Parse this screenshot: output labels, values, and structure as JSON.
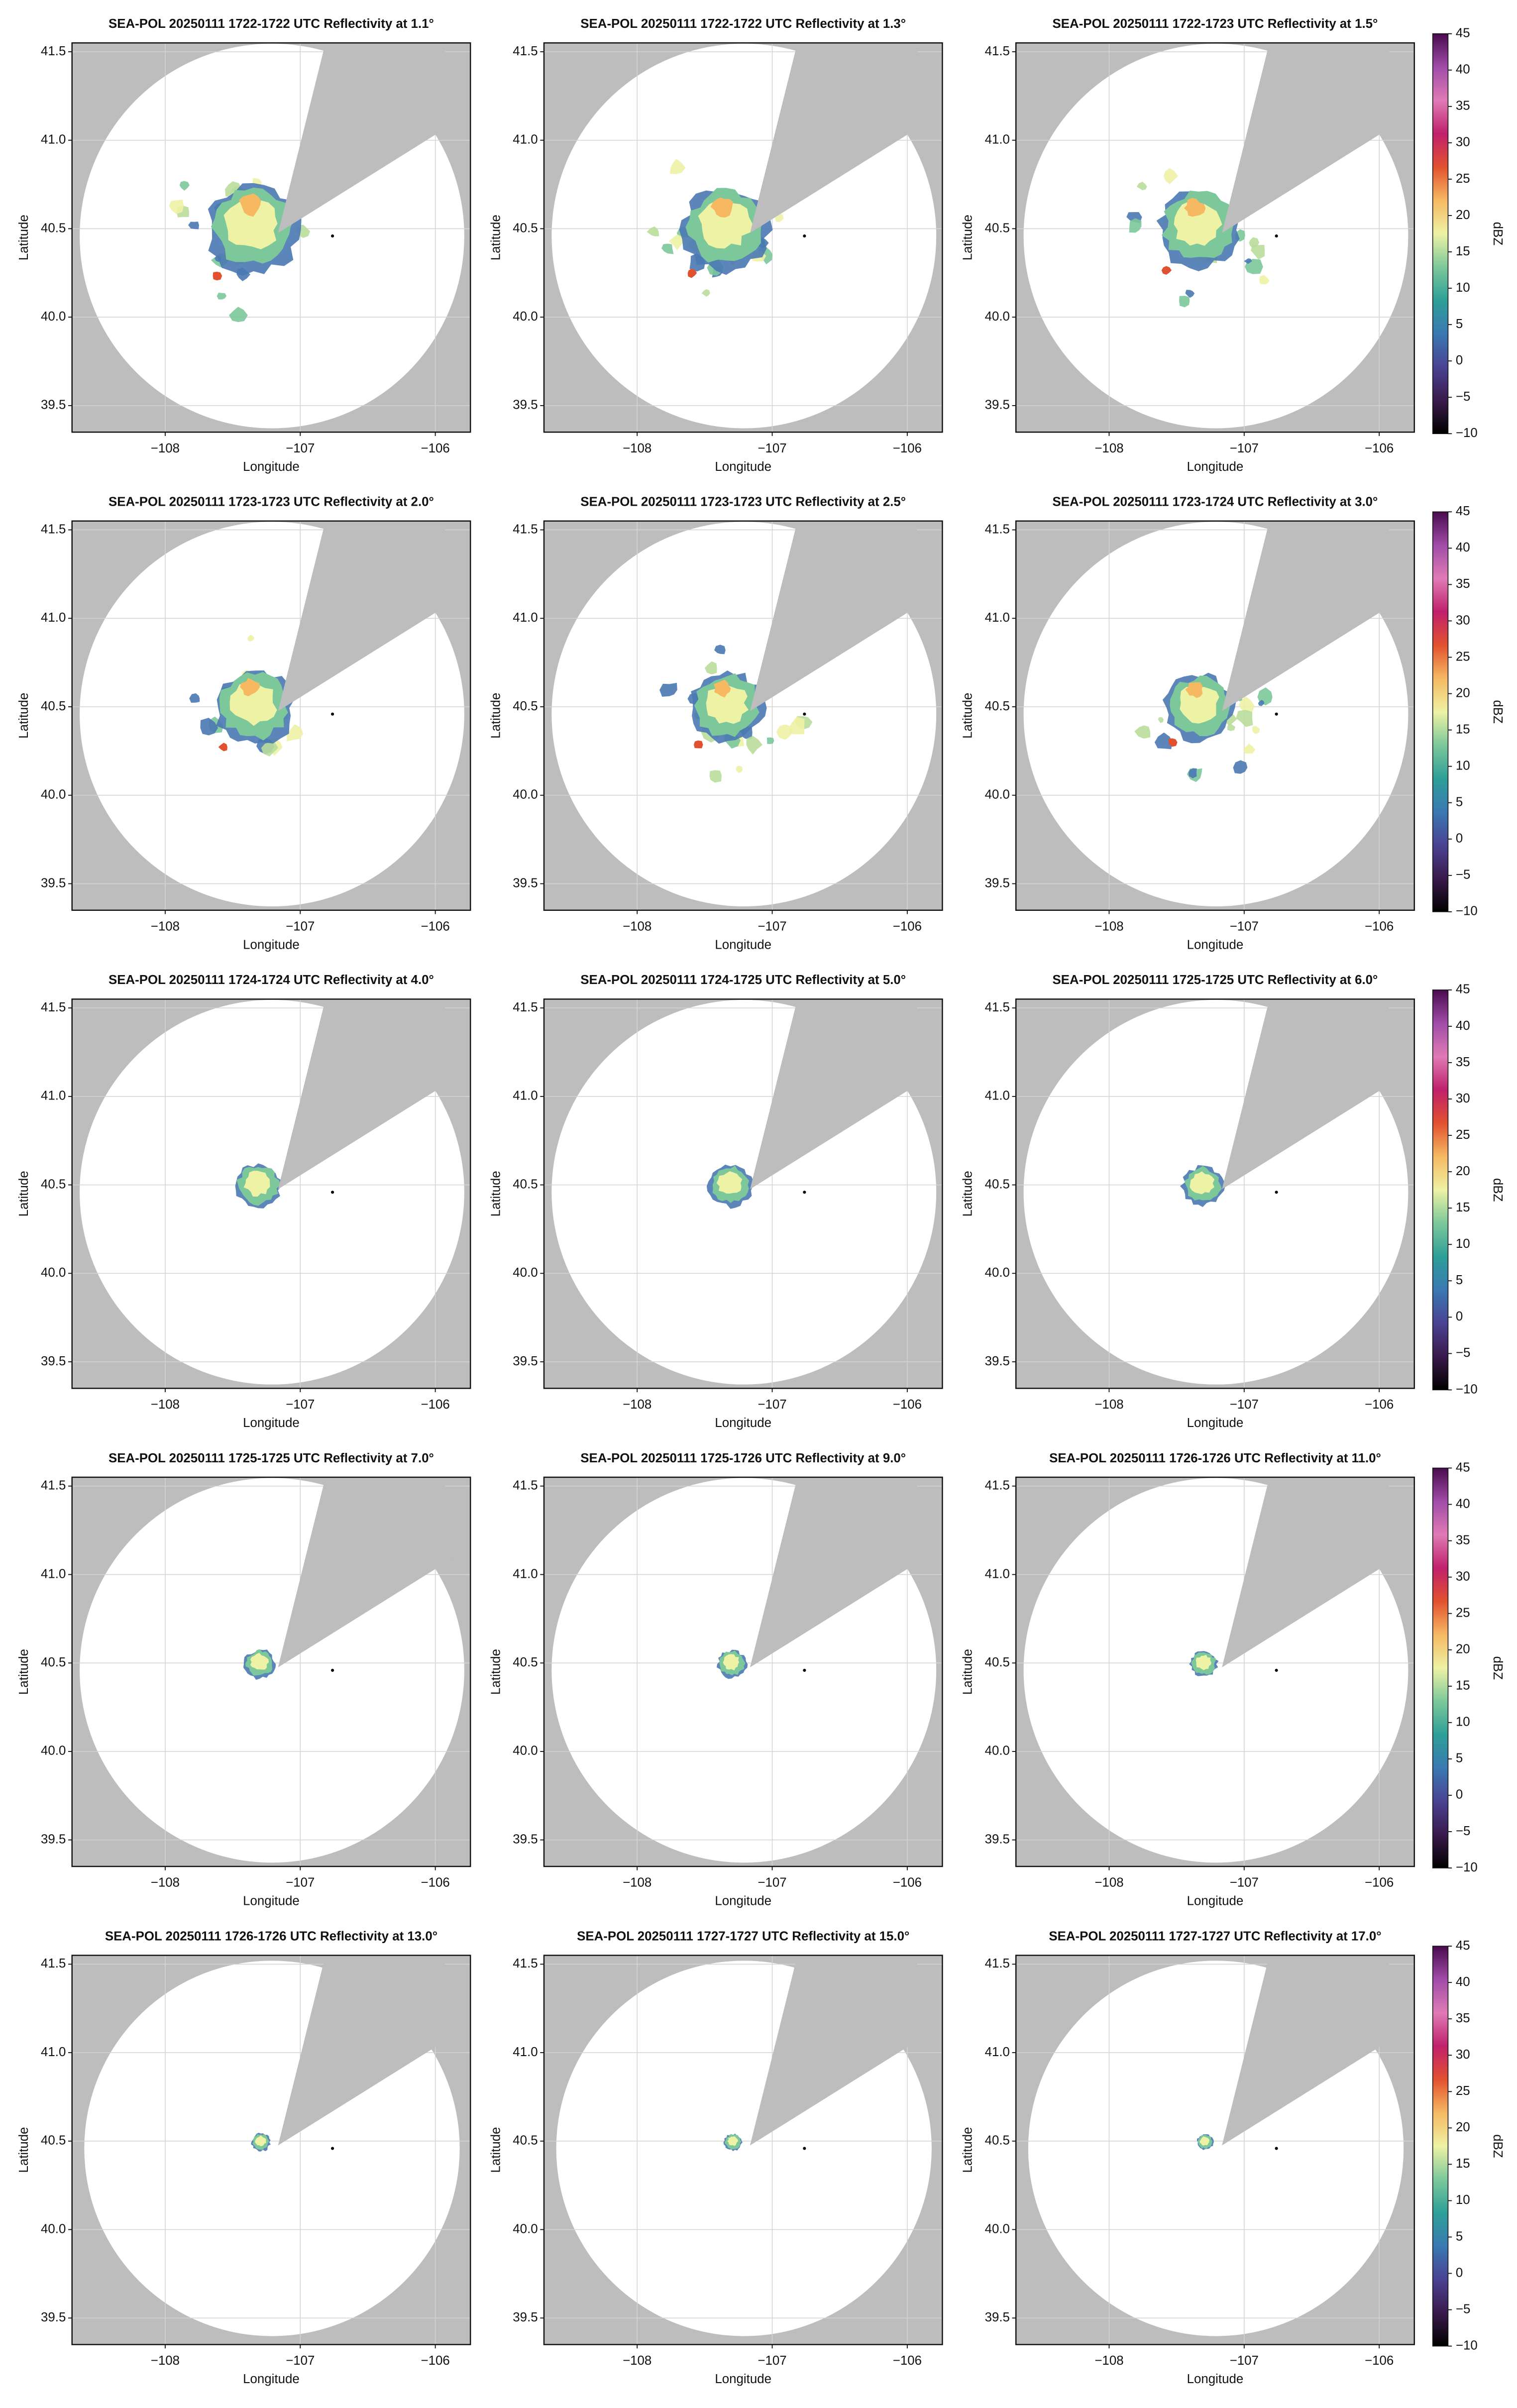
{
  "chart_data": [
    {
      "type": "radar",
      "title": "SEA-POL 20250111 1722-1722 UTC Reflectivity at 1.1°",
      "xlabel": "Longitude",
      "ylabel": "Latitude",
      "xlim": [
        -108.69,
        -105.74
      ],
      "ylim": [
        39.35,
        41.55
      ],
      "xticks": [
        {
          "value": -108,
          "label": "−108"
        },
        {
          "value": -107,
          "label": "−107"
        },
        {
          "value": -106,
          "label": "−106"
        }
      ],
      "yticks": [
        39.5,
        {
          "value": 40,
          "label": "40.0"
        },
        40.5,
        {
          "value": 41,
          "label": "41.0"
        },
        41.5
      ],
      "grid": true
    },
    {
      "type": "radar",
      "title": "SEA-POL 20250111 1722-1722 UTC Reflectivity at 1.3°",
      "xlabel": "Longitude",
      "ylabel": "Latitude",
      "xlim": [
        -108.69,
        -105.74
      ],
      "ylim": [
        39.35,
        41.55
      ],
      "xticks": [
        {
          "value": -108,
          "label": "−108"
        },
        {
          "value": -107,
          "label": "−107"
        },
        {
          "value": -106,
          "label": "−106"
        }
      ],
      "yticks": [
        39.5,
        {
          "value": 40,
          "label": "40.0"
        },
        40.5,
        {
          "value": 41,
          "label": "41.0"
        },
        41.5
      ],
      "grid": true
    },
    {
      "type": "radar",
      "title": "SEA-POL 20250111 1722-1723 UTC Reflectivity at 1.5°",
      "xlabel": "Longitude",
      "ylabel": "Latitude",
      "xlim": [
        -108.69,
        -105.74
      ],
      "ylim": [
        39.35,
        41.55
      ],
      "xticks": [
        {
          "value": -108,
          "label": "−108"
        },
        {
          "value": -107,
          "label": "−107"
        },
        {
          "value": -106,
          "label": "−106"
        }
      ],
      "yticks": [
        39.5,
        {
          "value": 40,
          "label": "40.0"
        },
        40.5,
        {
          "value": 41,
          "label": "41.0"
        },
        41.5
      ],
      "grid": true,
      "colorbar": {
        "label": "dBZ",
        "lim": [
          -10,
          45
        ],
        "ticks": [
          {
            "value": -10,
            "label": "−10"
          },
          {
            "value": -5,
            "label": "−5"
          },
          0,
          5,
          10,
          15,
          20,
          25,
          30,
          35,
          40,
          45
        ],
        "colormap": [
          "#000000",
          "#3a1a4c",
          "#4a4293",
          "#3a79b2",
          "#2e9f98",
          "#7cc89b",
          "#eef2a4",
          "#f6b962",
          "#e2512f",
          "#c0216b",
          "#e07ab6",
          "#a04ca8",
          "#4a0b4e"
        ]
      }
    },
    {
      "type": "radar",
      "title": "SEA-POL 20250111 1723-1723 UTC Reflectivity at 2.0°",
      "xlabel": "Longitude",
      "ylabel": "Latitude",
      "xlim": [
        -108.69,
        -105.74
      ],
      "ylim": [
        39.35,
        41.55
      ],
      "xticks": [
        {
          "value": -108,
          "label": "−108"
        },
        {
          "value": -107,
          "label": "−107"
        },
        {
          "value": -106,
          "label": "−106"
        }
      ],
      "yticks": [
        39.5,
        {
          "value": 40,
          "label": "40.0"
        },
        40.5,
        {
          "value": 41,
          "label": "41.0"
        },
        41.5
      ],
      "grid": true
    },
    {
      "type": "radar",
      "title": "SEA-POL 20250111 1723-1723 UTC Reflectivity at 2.5°",
      "xlabel": "Longitude",
      "ylabel": "Latitude",
      "xlim": [
        -108.69,
        -105.74
      ],
      "ylim": [
        39.35,
        41.55
      ],
      "xticks": [
        {
          "value": -108,
          "label": "−108"
        },
        {
          "value": -107,
          "label": "−107"
        },
        {
          "value": -106,
          "label": "−106"
        }
      ],
      "yticks": [
        39.5,
        {
          "value": 40,
          "label": "40.0"
        },
        40.5,
        {
          "value": 41,
          "label": "41.0"
        },
        41.5
      ],
      "grid": true
    },
    {
      "type": "radar",
      "title": "SEA-POL 20250111 1723-1724 UTC Reflectivity at 3.0°",
      "xlabel": "Longitude",
      "ylabel": "Latitude",
      "xlim": [
        -108.69,
        -105.74
      ],
      "ylim": [
        39.35,
        41.55
      ],
      "xticks": [
        {
          "value": -108,
          "label": "−108"
        },
        {
          "value": -107,
          "label": "−107"
        },
        {
          "value": -106,
          "label": "−106"
        }
      ],
      "yticks": [
        39.5,
        {
          "value": 40,
          "label": "40.0"
        },
        40.5,
        {
          "value": 41,
          "label": "41.0"
        },
        41.5
      ],
      "grid": true,
      "colorbar": {
        "label": "dBZ",
        "lim": [
          -10,
          45
        ],
        "ticks": [
          {
            "value": -10,
            "label": "−10"
          },
          {
            "value": -5,
            "label": "−5"
          },
          0,
          5,
          10,
          15,
          20,
          25,
          30,
          35,
          40,
          45
        ],
        "colormap": [
          "#000000",
          "#3a1a4c",
          "#4a4293",
          "#3a79b2",
          "#2e9f98",
          "#7cc89b",
          "#eef2a4",
          "#f6b962",
          "#e2512f",
          "#c0216b",
          "#e07ab6",
          "#a04ca8",
          "#4a0b4e"
        ]
      }
    },
    {
      "type": "radar",
      "title": "SEA-POL 20250111 1724-1724 UTC Reflectivity at 4.0°",
      "xlabel": "Longitude",
      "ylabel": "Latitude",
      "xlim": [
        -108.69,
        -105.74
      ],
      "ylim": [
        39.35,
        41.55
      ],
      "xticks": [
        {
          "value": -108,
          "label": "−108"
        },
        {
          "value": -107,
          "label": "−107"
        },
        {
          "value": -106,
          "label": "−106"
        }
      ],
      "yticks": [
        39.5,
        {
          "value": 40,
          "label": "40.0"
        },
        40.5,
        {
          "value": 41,
          "label": "41.0"
        },
        41.5
      ],
      "grid": true
    },
    {
      "type": "radar",
      "title": "SEA-POL 20250111 1724-1725 UTC Reflectivity at 5.0°",
      "xlabel": "Longitude",
      "ylabel": "Latitude",
      "xlim": [
        -108.69,
        -105.74
      ],
      "ylim": [
        39.35,
        41.55
      ],
      "xticks": [
        {
          "value": -108,
          "label": "−108"
        },
        {
          "value": -107,
          "label": "−107"
        },
        {
          "value": -106,
          "label": "−106"
        }
      ],
      "yticks": [
        39.5,
        {
          "value": 40,
          "label": "40.0"
        },
        40.5,
        {
          "value": 41,
          "label": "41.0"
        },
        41.5
      ],
      "grid": true
    },
    {
      "type": "radar",
      "title": "SEA-POL 20250111 1725-1725 UTC Reflectivity at 6.0°",
      "xlabel": "Longitude",
      "ylabel": "Latitude",
      "xlim": [
        -108.69,
        -105.74
      ],
      "ylim": [
        39.35,
        41.55
      ],
      "xticks": [
        {
          "value": -108,
          "label": "−108"
        },
        {
          "value": -107,
          "label": "−107"
        },
        {
          "value": -106,
          "label": "−106"
        }
      ],
      "yticks": [
        39.5,
        {
          "value": 40,
          "label": "40.0"
        },
        40.5,
        {
          "value": 41,
          "label": "41.0"
        },
        41.5
      ],
      "grid": true,
      "colorbar": {
        "label": "dBZ",
        "lim": [
          -10,
          45
        ],
        "ticks": [
          {
            "value": -10,
            "label": "−10"
          },
          {
            "value": -5,
            "label": "−5"
          },
          0,
          5,
          10,
          15,
          20,
          25,
          30,
          35,
          40,
          45
        ],
        "colormap": [
          "#000000",
          "#3a1a4c",
          "#4a4293",
          "#3a79b2",
          "#2e9f98",
          "#7cc89b",
          "#eef2a4",
          "#f6b962",
          "#e2512f",
          "#c0216b",
          "#e07ab6",
          "#a04ca8",
          "#4a0b4e"
        ]
      }
    },
    {
      "type": "radar",
      "title": "SEA-POL 20250111 1725-1725 UTC Reflectivity at 7.0°",
      "xlabel": "Longitude",
      "ylabel": "Latitude",
      "xlim": [
        -108.69,
        -105.74
      ],
      "ylim": [
        39.35,
        41.55
      ],
      "xticks": [
        {
          "value": -108,
          "label": "−108"
        },
        {
          "value": -107,
          "label": "−107"
        },
        {
          "value": -106,
          "label": "−106"
        }
      ],
      "yticks": [
        39.5,
        {
          "value": 40,
          "label": "40.0"
        },
        40.5,
        {
          "value": 41,
          "label": "41.0"
        },
        41.5
      ],
      "grid": true
    },
    {
      "type": "radar",
      "title": "SEA-POL 20250111 1725-1726 UTC Reflectivity at 9.0°",
      "xlabel": "Longitude",
      "ylabel": "Latitude",
      "xlim": [
        -108.69,
        -105.74
      ],
      "ylim": [
        39.35,
        41.55
      ],
      "xticks": [
        {
          "value": -108,
          "label": "−108"
        },
        {
          "value": -107,
          "label": "−107"
        },
        {
          "value": -106,
          "label": "−106"
        }
      ],
      "yticks": [
        39.5,
        {
          "value": 40,
          "label": "40.0"
        },
        40.5,
        {
          "value": 41,
          "label": "41.0"
        },
        41.5
      ],
      "grid": true
    },
    {
      "type": "radar",
      "title": "SEA-POL 20250111 1726-1726 UTC Reflectivity at 11.0°",
      "xlabel": "Longitude",
      "ylabel": "Latitude",
      "xlim": [
        -108.69,
        -105.74
      ],
      "ylim": [
        39.35,
        41.55
      ],
      "xticks": [
        {
          "value": -108,
          "label": "−108"
        },
        {
          "value": -107,
          "label": "−107"
        },
        {
          "value": -106,
          "label": "−106"
        }
      ],
      "yticks": [
        39.5,
        {
          "value": 40,
          "label": "40.0"
        },
        40.5,
        {
          "value": 41,
          "label": "41.0"
        },
        41.5
      ],
      "grid": true,
      "colorbar": {
        "label": "dBZ",
        "lim": [
          -10,
          45
        ],
        "ticks": [
          {
            "value": -10,
            "label": "−10"
          },
          {
            "value": -5,
            "label": "−5"
          },
          0,
          5,
          10,
          15,
          20,
          25,
          30,
          35,
          40,
          45
        ],
        "colormap": [
          "#000000",
          "#3a1a4c",
          "#4a4293",
          "#3a79b2",
          "#2e9f98",
          "#7cc89b",
          "#eef2a4",
          "#f6b962",
          "#e2512f",
          "#c0216b",
          "#e07ab6",
          "#a04ca8",
          "#4a0b4e"
        ]
      }
    },
    {
      "type": "radar",
      "title": "SEA-POL 20250111 1726-1726 UTC Reflectivity at 13.0°",
      "xlabel": "Longitude",
      "ylabel": "Latitude",
      "xlim": [
        -108.69,
        -105.74
      ],
      "ylim": [
        39.35,
        41.55
      ],
      "xticks": [
        {
          "value": -108,
          "label": "−108"
        },
        {
          "value": -107,
          "label": "−107"
        },
        {
          "value": -106,
          "label": "−106"
        }
      ],
      "yticks": [
        39.5,
        {
          "value": 40,
          "label": "40.0"
        },
        40.5,
        {
          "value": 41,
          "label": "41.0"
        },
        41.5
      ],
      "grid": true
    },
    {
      "type": "radar",
      "title": "SEA-POL 20250111 1727-1727 UTC Reflectivity at 15.0°",
      "xlabel": "Longitude",
      "ylabel": "Latitude",
      "xlim": [
        -108.69,
        -105.74
      ],
      "ylim": [
        39.35,
        41.55
      ],
      "xticks": [
        {
          "value": -108,
          "label": "−108"
        },
        {
          "value": -107,
          "label": "−107"
        },
        {
          "value": -106,
          "label": "−106"
        }
      ],
      "yticks": [
        39.5,
        {
          "value": 40,
          "label": "40.0"
        },
        40.5,
        {
          "value": 41,
          "label": "41.0"
        },
        41.5
      ],
      "grid": true
    },
    {
      "type": "radar",
      "title": "SEA-POL 20250111 1727-1727 UTC Reflectivity at 17.0°",
      "xlabel": "Longitude",
      "ylabel": "Latitude",
      "xlim": [
        -108.69,
        -105.74
      ],
      "ylim": [
        39.35,
        41.55
      ],
      "xticks": [
        {
          "value": -108,
          "label": "−108"
        },
        {
          "value": -107,
          "label": "−107"
        },
        {
          "value": -106,
          "label": "−106"
        }
      ],
      "yticks": [
        39.5,
        {
          "value": 40,
          "label": "40.0"
        },
        40.5,
        {
          "value": 41,
          "label": "41.0"
        },
        41.5
      ],
      "grid": true,
      "colorbar": {
        "label": "dBZ",
        "lim": [
          -10,
          45
        ],
        "ticks": [
          {
            "value": -10,
            "label": "−10"
          },
          {
            "value": -5,
            "label": "−5"
          },
          0,
          5,
          10,
          15,
          20,
          25,
          30,
          35,
          40,
          45
        ],
        "colormap": [
          "#000000",
          "#3a1a4c",
          "#4a4293",
          "#3a79b2",
          "#2e9f98",
          "#7cc89b",
          "#eef2a4",
          "#f6b962",
          "#e2512f",
          "#c0216b",
          "#e07ab6",
          "#a04ca8",
          "#4a0b4e"
        ]
      }
    }
  ]
}
